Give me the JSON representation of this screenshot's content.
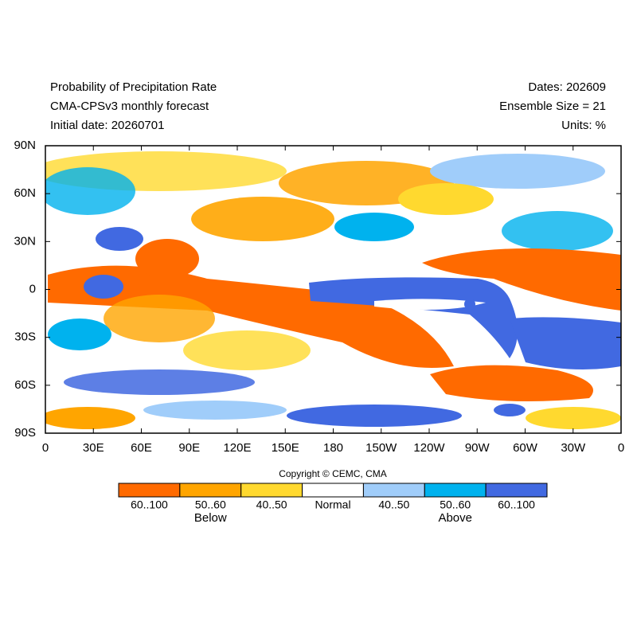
{
  "header": {
    "left": [
      "Probability of Precipitation Rate",
      "CMA-CPSv3 monthly forecast",
      "Initial date: 20260701"
    ],
    "right": [
      "Dates: 202609",
      "Ensemble Size = 21",
      "Units: %"
    ]
  },
  "map": {
    "x_ticks": [
      "0",
      "30E",
      "60E",
      "90E",
      "120E",
      "150E",
      "180",
      "150W",
      "120W",
      "90W",
      "60W",
      "30W",
      "0"
    ],
    "y_ticks": [
      "90N",
      "60N",
      "30N",
      "0",
      "30S",
      "60S",
      "90S"
    ]
  },
  "copyright": "Copyright © CEMC, CMA",
  "legend": {
    "items": [
      {
        "label": "60..100",
        "color": "#ff6a00"
      },
      {
        "label": "50..60",
        "color": "#ffa500"
      },
      {
        "label": "40..50",
        "color": "#ffd92f"
      },
      {
        "label": "Normal",
        "color": "#ffffff"
      },
      {
        "label": "40..50",
        "color": "#a0cdfa"
      },
      {
        "label": "50..60",
        "color": "#00b2ee"
      },
      {
        "label": "60..100",
        "color": "#4169e1"
      }
    ],
    "below": "Below",
    "above": "Above"
  }
}
